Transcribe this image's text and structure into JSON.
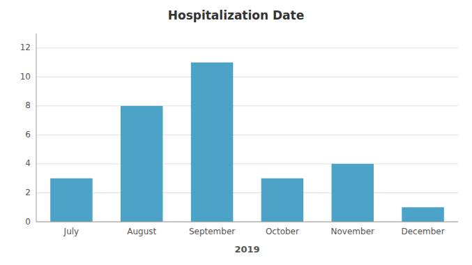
{
  "chart_data": {
    "type": "bar",
    "title": "Hospitalization Date",
    "categories": [
      "July",
      "August",
      "September",
      "October",
      "November",
      "December"
    ],
    "values": [
      3,
      8,
      11,
      3,
      4,
      1
    ],
    "color": "#4da3c7",
    "xlabel": "2019",
    "ylim": [
      0,
      13
    ],
    "yticks": [
      0,
      2,
      4,
      6,
      8,
      10,
      12
    ],
    "grid": true
  }
}
